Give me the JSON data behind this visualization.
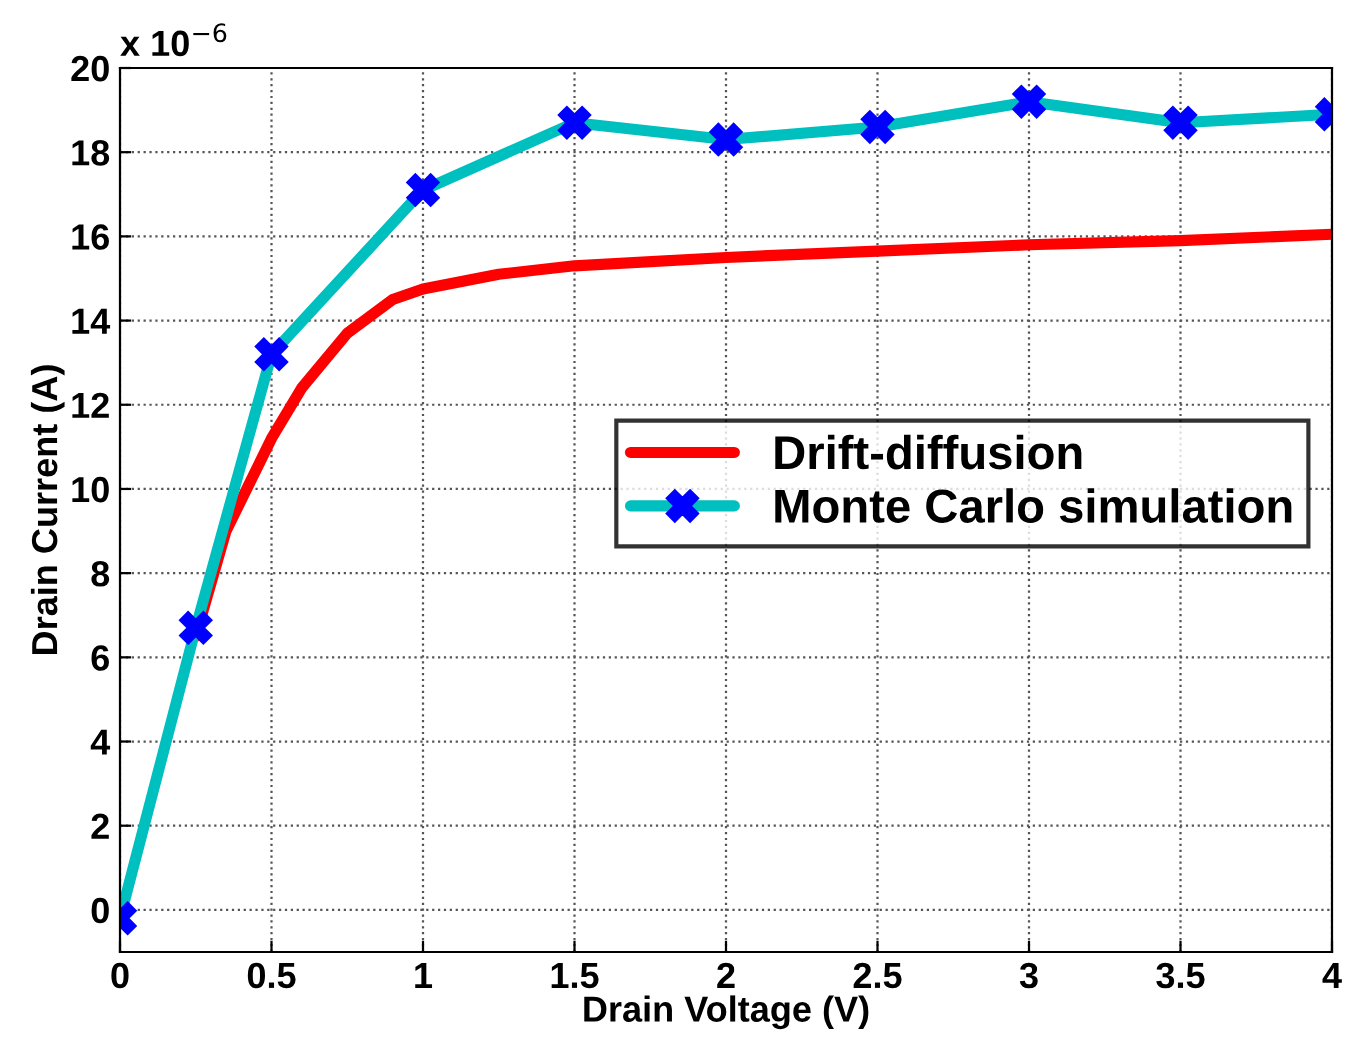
{
  "chart_data": {
    "type": "line",
    "xlabel": "Drain Voltage (V)",
    "ylabel": "Drain Current (A)",
    "annotations": [
      "x 10$^{−6}$"
    ],
    "xlim": [
      0,
      4
    ],
    "xticks": [
      0,
      0.5,
      1,
      1.5,
      2,
      2.5,
      3,
      3.5,
      4
    ],
    "ylim": [
      -1,
      20
    ],
    "yticks": [
      0,
      2,
      4,
      6,
      8,
      10,
      12,
      14,
      16,
      18,
      20
    ],
    "grid": true,
    "legend": "right",
    "series": [
      {
        "name": "Drift-diffusion",
        "color": "#ff0000",
        "marker": "none",
        "x": [
          0.25,
          0.35,
          0.5,
          0.6,
          0.75,
          0.9,
          1,
          1.25,
          1.5,
          2,
          2.5,
          3,
          3.5,
          4
        ],
        "values": [
          6.5,
          9.0,
          11.2,
          12.4,
          13.7,
          14.5,
          14.75,
          15.1,
          15.3,
          15.5,
          15.65,
          15.8,
          15.9,
          16.05
        ]
      },
      {
        "name": "Monte Carlo simulation",
        "color": "#00bfbf",
        "marker": "cross",
        "x": [
          0,
          0.25,
          0.5,
          1,
          1.5,
          2,
          2.5,
          3,
          3.5,
          4
        ],
        "values": [
          -0.2,
          6.7,
          13.2,
          17.1,
          18.7,
          18.3,
          18.6,
          19.2,
          18.7,
          18.9
        ]
      }
    ]
  }
}
